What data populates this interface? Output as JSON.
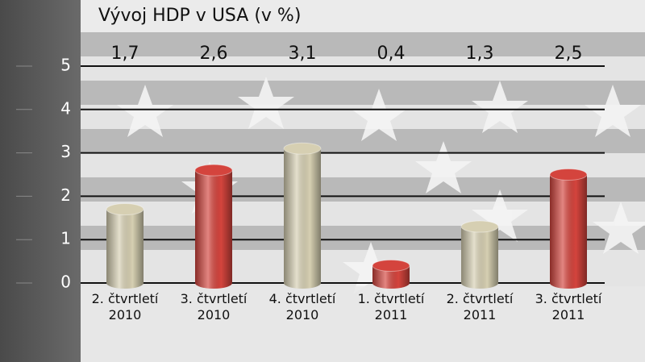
{
  "chart_data": {
    "type": "bar",
    "title": "Vývoj HDP v USA (v %)",
    "categories": [
      "2. čtvrtletí 2010",
      "3. čtvrtletí 2010",
      "4. čtvrtletí 2010",
      "1. čtvrtletí 2011",
      "2. čtvrtletí 2011",
      "3. čtvrtletí 2011"
    ],
    "values": [
      1.7,
      2.6,
      3.1,
      0.4,
      1.3,
      2.5
    ],
    "value_labels": [
      "1,7",
      "2,6",
      "3,1",
      "0,4",
      "1,3",
      "2,5"
    ],
    "colors": [
      "#d6cfb2",
      "#d4443d",
      "#d6cfb2",
      "#d4443d",
      "#d6cfb2",
      "#d4443d"
    ],
    "ylim": [
      0,
      5
    ],
    "yticks": [
      0,
      1,
      2,
      3,
      4,
      5
    ],
    "grid": true
  }
}
